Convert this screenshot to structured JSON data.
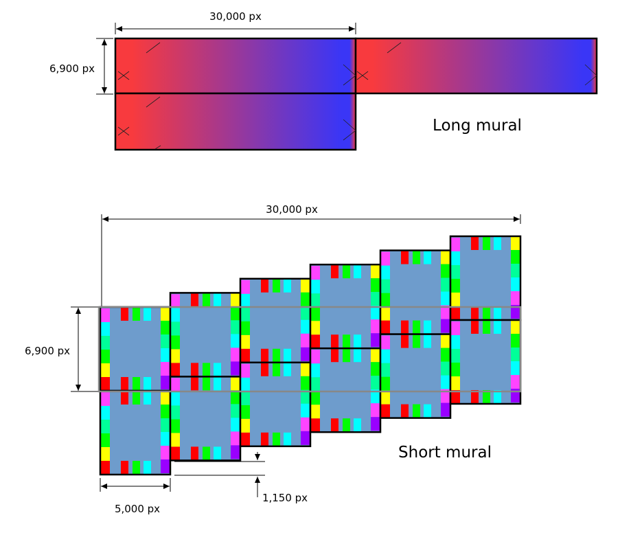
{
  "long_mural": {
    "title": "Long mural",
    "width_label": "30,000 px",
    "height_label": "6,900 px",
    "gradient_start": "#f83a3e",
    "gradient_end": "#3a36f6"
  },
  "short_mural": {
    "title": "Short mural",
    "width_label": "30,000 px",
    "height_label": "6,900 px",
    "tile_width_label": "5,000 px",
    "step_label": "1,150 px",
    "tile_fill": "#6e9ccc",
    "column_count": 6,
    "border_colors": [
      "#ff0000",
      "#ffff00",
      "#00ff00",
      "#00ff99",
      "#00ffff",
      "#ff44ff",
      "#9900ff"
    ]
  },
  "highlight_color": "#888888"
}
